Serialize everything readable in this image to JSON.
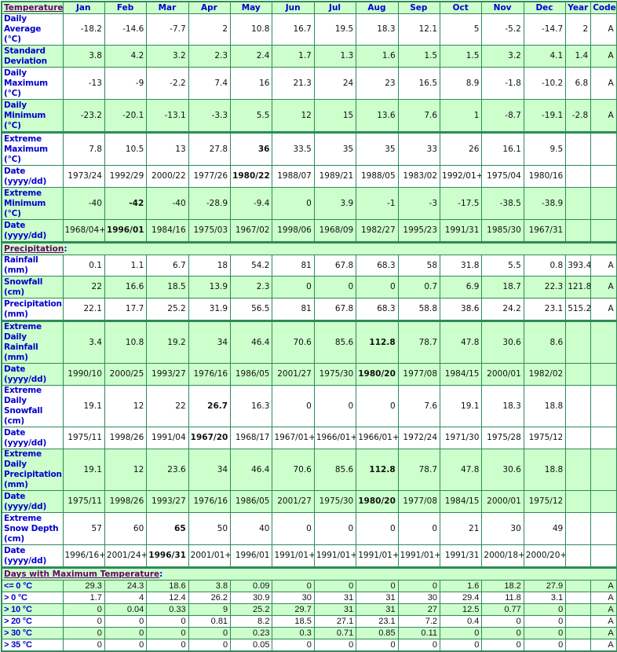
{
  "header": {
    "section": "Temperature",
    "columns": [
      "Jan",
      "Feb",
      "Mar",
      "Apr",
      "May",
      "Jun",
      "Jul",
      "Aug",
      "Sep",
      "Oct",
      "Nov",
      "Dec",
      "Year",
      "Code"
    ]
  },
  "sections": [
    {
      "title": "Temperature",
      "rows": [
        {
          "label": "Daily Average\n(°C)",
          "values": [
            "-18.2",
            "-14.6",
            "-7.7",
            "2",
            "10.8",
            "16.7",
            "19.5",
            "18.3",
            "12.1",
            "5",
            "-5.2",
            "-14.7",
            "2",
            "A"
          ]
        },
        {
          "label": "Standard\nDeviation",
          "values": [
            "3.8",
            "4.2",
            "3.2",
            "2.3",
            "2.4",
            "1.7",
            "1.3",
            "1.6",
            "1.5",
            "1.5",
            "3.2",
            "4.1",
            "1.4",
            "A"
          ]
        },
        {
          "label": "Daily\nMaximum\n(°C)",
          "values": [
            "-13",
            "-9",
            "-2.2",
            "7.4",
            "16",
            "21.3",
            "24",
            "23",
            "16.5",
            "8.9",
            "-1.8",
            "-10.2",
            "6.8",
            "A"
          ]
        },
        {
          "label": "Daily\nMinimum\n(°C)",
          "values": [
            "-23.2",
            "-20.1",
            "-13.1",
            "-3.3",
            "5.5",
            "12",
            "15",
            "13.6",
            "7.6",
            "1",
            "-8.7",
            "-19.1",
            "-2.8",
            "A"
          ]
        },
        {
          "label": "Extreme\nMaximum\n(°C)",
          "values": [
            "7.8",
            "10.5",
            "13",
            "27.8",
            "36",
            "33.5",
            "35",
            "35",
            "33",
            "26",
            "16.1",
            "9.5",
            "",
            ""
          ],
          "bold": 4
        },
        {
          "label": "Date\n(yyyy/dd)",
          "values": [
            "1973/24",
            "1992/29",
            "2000/22",
            "1977/26",
            "1980/22",
            "1988/07",
            "1989/21",
            "1988/05",
            "1983/02",
            "1992/01+",
            "1975/04",
            "1980/16",
            "",
            ""
          ],
          "bold": 4
        },
        {
          "label": "Extreme\nMinimum\n(°C)",
          "values": [
            "-40",
            "-42",
            "-40",
            "-28.9",
            "-9.4",
            "0",
            "3.9",
            "-1",
            "-3",
            "-17.5",
            "-38.5",
            "-38.9",
            "",
            ""
          ],
          "bold": 1
        },
        {
          "label": "Date\n(yyyy/dd)",
          "values": [
            "1968/04+",
            "1996/01",
            "1984/16",
            "1975/03",
            "1967/02",
            "1998/06",
            "1968/09",
            "1982/27",
            "1995/23",
            "1991/31",
            "1985/30",
            "1967/31",
            "",
            ""
          ],
          "bold": 1
        }
      ]
    },
    {
      "title": "Precipitation",
      "rows": [
        {
          "label": "Rainfall (mm)",
          "values": [
            "0.1",
            "1.1",
            "6.7",
            "18",
            "54.2",
            "81",
            "67.8",
            "68.3",
            "58",
            "31.8",
            "5.5",
            "0.8",
            "393.4",
            "A"
          ]
        },
        {
          "label": "Snowfall\n(cm)",
          "values": [
            "22",
            "16.6",
            "18.5",
            "13.9",
            "2.3",
            "0",
            "0",
            "0",
            "0.7",
            "6.9",
            "18.7",
            "22.3",
            "121.8",
            "A"
          ]
        },
        {
          "label": "Precipitation\n(mm)",
          "values": [
            "22.1",
            "17.7",
            "25.2",
            "31.9",
            "56.5",
            "81",
            "67.8",
            "68.3",
            "58.8",
            "38.6",
            "24.2",
            "23.1",
            "515.2",
            "A"
          ]
        },
        {
          "label": "Extreme Daily\nRainfall (mm)",
          "values": [
            "3.4",
            "10.8",
            "19.2",
            "34",
            "46.4",
            "70.6",
            "85.6",
            "112.8",
            "78.7",
            "47.8",
            "30.6",
            "8.6",
            "",
            ""
          ],
          "bold": 7
        },
        {
          "label": "Date\n(yyyy/dd)",
          "values": [
            "1990/10",
            "2000/25",
            "1993/27",
            "1976/16",
            "1986/05",
            "2001/27",
            "1975/30",
            "1980/20",
            "1977/08",
            "1984/15",
            "2000/01",
            "1982/02",
            "",
            ""
          ],
          "bold": 7
        },
        {
          "label": "Extreme Daily\nSnowfall\n(cm)",
          "values": [
            "19.1",
            "12",
            "22",
            "26.7",
            "16.3",
            "0",
            "0",
            "0",
            "7.6",
            "19.1",
            "18.3",
            "18.8",
            "",
            ""
          ],
          "bold": 3
        },
        {
          "label": "Date\n(yyyy/dd)",
          "values": [
            "1975/11",
            "1998/26",
            "1991/04",
            "1967/20",
            "1968/17",
            "1967/01+",
            "1966/01+",
            "1966/01+",
            "1972/24",
            "1971/30",
            "1975/28",
            "1975/12",
            "",
            ""
          ],
          "bold": 3
        },
        {
          "label": "Extreme Daily\nPrecipitation\n(mm)",
          "values": [
            "19.1",
            "12",
            "23.6",
            "34",
            "46.4",
            "70.6",
            "85.6",
            "112.8",
            "78.7",
            "47.8",
            "30.6",
            "18.8",
            "",
            ""
          ],
          "bold": 7
        },
        {
          "label": "Date\n(yyyy/dd)",
          "values": [
            "1975/11",
            "1998/26",
            "1993/27",
            "1976/16",
            "1986/05",
            "2001/27",
            "1975/30",
            "1980/20",
            "1977/08",
            "1984/15",
            "2000/01",
            "1975/12",
            "",
            ""
          ],
          "bold": 7
        },
        {
          "label": "Extreme\nSnow Depth\n(cm)",
          "values": [
            "57",
            "60",
            "65",
            "50",
            "40",
            "0",
            "0",
            "0",
            "0",
            "21",
            "30",
            "49",
            "",
            ""
          ],
          "bold": 2
        },
        {
          "label": "Date\n(yyyy/dd)",
          "values": [
            "1996/16+",
            "2001/24+",
            "1996/31",
            "2001/01+",
            "1996/01",
            "1991/01+",
            "1991/01+",
            "1991/01+",
            "1991/01+",
            "1991/31",
            "2000/18+",
            "2000/20+",
            "",
            ""
          ],
          "bold": 2
        }
      ]
    },
    {
      "title": "Days with Maximum Temperature",
      "rows": [
        {
          "label": "<= 0 °C",
          "values": [
            "29.3",
            "24.3",
            "18.6",
            "3.8",
            "0.09",
            "0",
            "0",
            "0",
            "0",
            "1.6",
            "18.2",
            "27.9",
            "",
            "A"
          ]
        },
        {
          "label": "> 0 °C",
          "values": [
            "1.7",
            "4",
            "12.4",
            "26.2",
            "30.9",
            "30",
            "31",
            "31",
            "30",
            "29.4",
            "11.8",
            "3.1",
            "",
            "A"
          ]
        },
        {
          "label": "> 10 °C",
          "values": [
            "0",
            "0.04",
            "0.33",
            "9",
            "25.2",
            "29.7",
            "31",
            "31",
            "27",
            "12.5",
            "0.77",
            "0",
            "",
            "A"
          ]
        },
        {
          "label": "> 20 °C",
          "values": [
            "0",
            "0",
            "0",
            "0.81",
            "8.2",
            "18.5",
            "27.1",
            "23.1",
            "7.2",
            "0.4",
            "0",
            "0",
            "",
            "A"
          ]
        },
        {
          "label": "> 30 °C",
          "values": [
            "0",
            "0",
            "0",
            "0",
            "0.23",
            "0.3",
            "0.71",
            "0.85",
            "0.11",
            "0",
            "0",
            "0",
            "",
            "A"
          ]
        },
        {
          "label": "> 35 °C",
          "values": [
            "0",
            "0",
            "0",
            "0",
            "0.05",
            "0",
            "0",
            "0",
            "0",
            "0",
            "0",
            "0",
            "",
            "A"
          ]
        }
      ]
    }
  ],
  "colors": {
    "border": "#2e8b57",
    "stripe": "#ccffcc",
    "label": "#0000cc",
    "section": "#660066"
  }
}
